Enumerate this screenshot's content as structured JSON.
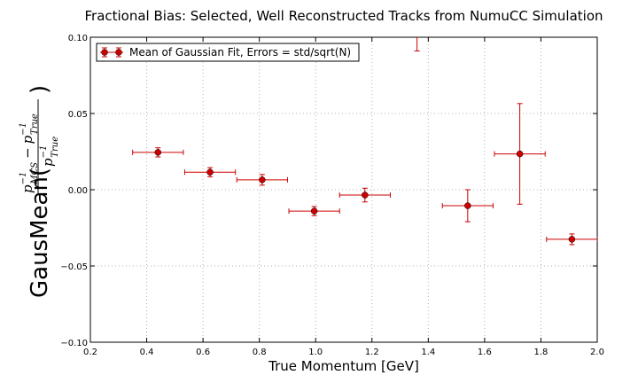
{
  "chart_data": {
    "type": "scatter",
    "title": "Fractional Bias: Selected, Well Reconstructed Tracks from NumuCC Simulation",
    "xlabel": "True Momentum [GeV]",
    "ylabel": {
      "prefix": "GausMean(",
      "numerator_p": "p",
      "numerator_sup": "−1",
      "numerator_sub1": "MCS",
      "numerator_minus": "−",
      "numerator_sub2": "True",
      "denominator_sub": "True",
      "suffix": ")"
    },
    "xlim": [
      0.2,
      2.0
    ],
    "ylim": [
      -0.1,
      0.1
    ],
    "xticks": [
      "0.2",
      "0.4",
      "0.6",
      "0.8",
      "1.0",
      "1.2",
      "1.4",
      "1.6",
      "1.8",
      "2.0"
    ],
    "xtick_values": [
      0.2,
      0.4,
      0.6,
      0.8,
      1.0,
      1.2,
      1.4,
      1.6,
      1.8,
      2.0
    ],
    "yticks": [
      "−0.10",
      "−0.05",
      "0.00",
      "0.05",
      "0.10"
    ],
    "ytick_values": [
      -0.1,
      -0.05,
      0.0,
      0.05,
      0.1
    ],
    "grid": true,
    "legend_position": "top-left",
    "series": [
      {
        "name": "Mean of Gaussian Fit, Errors = std/sqrt(N)",
        "color": "#cc0000",
        "points": [
          {
            "x": 0.44,
            "y": 0.0245,
            "xerr": 0.09,
            "yerr": 0.003
          },
          {
            "x": 0.625,
            "y": 0.0115,
            "xerr": 0.09,
            "yerr": 0.003
          },
          {
            "x": 0.81,
            "y": 0.0065,
            "xerr": 0.09,
            "yerr": 0.0035
          },
          {
            "x": 0.995,
            "y": -0.014,
            "xerr": 0.09,
            "yerr": 0.003
          },
          {
            "x": 1.175,
            "y": -0.0035,
            "xerr": 0.09,
            "yerr": 0.0045
          },
          {
            "x": 1.36,
            "y": 0.11,
            "xerr": 0.09,
            "yerr": 0.019
          },
          {
            "x": 1.54,
            "y": -0.0105,
            "xerr": 0.09,
            "yerr": 0.0105
          },
          {
            "x": 1.725,
            "y": 0.0235,
            "xerr": 0.09,
            "yerr": 0.033
          },
          {
            "x": 1.91,
            "y": -0.0325,
            "xerr": 0.09,
            "yerr": 0.0035
          }
        ]
      }
    ]
  }
}
